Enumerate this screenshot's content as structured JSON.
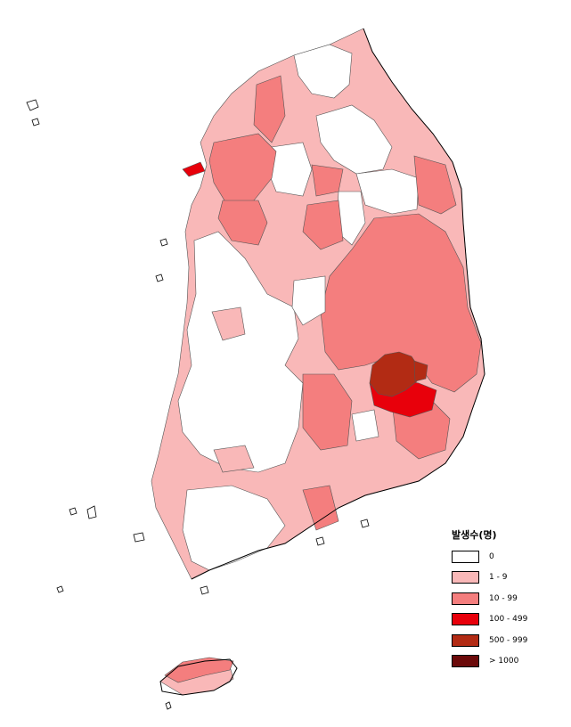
{
  "legend": {
    "title": "발생수(명)",
    "items": [
      {
        "label": "0",
        "color": "#ffffff"
      },
      {
        "label": "1 - 9",
        "color": "#f9b8b8"
      },
      {
        "label": "10 - 99",
        "color": "#f47e7e"
      },
      {
        "label": "100 - 499",
        "color": "#e8000b"
      },
      {
        "label": "500 - 999",
        "color": "#b22b14"
      },
      {
        "label": "> 1000",
        "color": "#6b0a0a"
      }
    ]
  }
}
